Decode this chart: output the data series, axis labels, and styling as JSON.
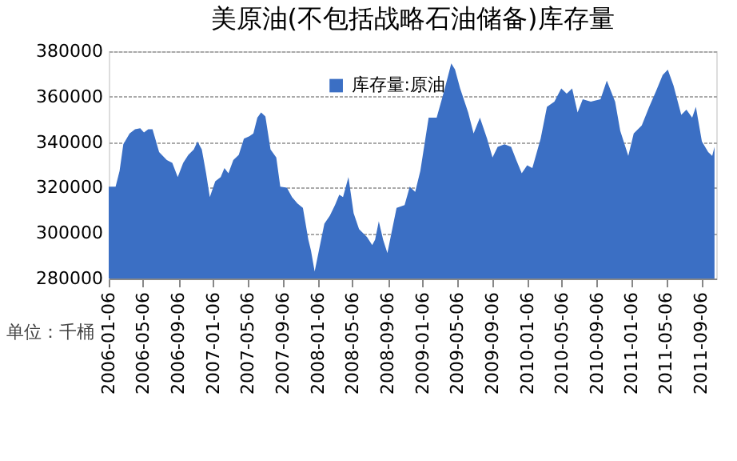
{
  "chart_data": {
    "type": "area",
    "title": "美原油(不包括战略石油储备)库存量",
    "x": [
      "2006-01-06",
      "2006-01-30",
      "2006-02-13",
      "2006-02-26",
      "2006-03-20",
      "2006-04-08",
      "2006-04-26",
      "2006-05-09",
      "2006-05-24",
      "2006-06-08",
      "2006-07-01",
      "2006-07-28",
      "2006-08-16",
      "2006-09-04",
      "2006-09-23",
      "2006-10-11",
      "2006-10-30",
      "2006-11-12",
      "2006-11-27",
      "2006-12-12",
      "2006-12-25",
      "2007-01-13",
      "2007-02-01",
      "2007-02-14",
      "2007-02-28",
      "2007-03-17",
      "2007-04-05",
      "2007-04-23",
      "2007-05-12",
      "2007-05-26",
      "2007-06-09",
      "2007-06-22",
      "2007-07-07",
      "2007-07-25",
      "2007-08-14",
      "2007-08-28",
      "2007-09-20",
      "2007-10-08",
      "2007-10-27",
      "2007-11-15",
      "2007-12-04",
      "2007-12-13",
      "2007-12-26",
      "2008-01-10",
      "2008-01-29",
      "2008-02-17",
      "2008-03-06",
      "2008-03-21",
      "2008-04-03",
      "2008-04-22",
      "2008-05-10",
      "2008-05-29",
      "2008-06-26",
      "2008-07-14",
      "2008-07-24",
      "2008-08-06",
      "2008-08-21",
      "2008-09-05",
      "2008-09-18",
      "2008-10-07",
      "2008-11-04",
      "2008-11-22",
      "2008-12-11",
      "2008-12-29",
      "2009-01-27",
      "2009-02-24",
      "2009-03-22",
      "2009-04-16",
      "2009-04-29",
      "2009-05-17",
      "2009-06-14",
      "2009-07-03",
      "2009-07-25",
      "2009-08-19",
      "2009-09-07",
      "2009-09-25",
      "2009-10-19",
      "2009-11-11",
      "2009-11-29",
      "2009-12-18",
      "2010-01-06",
      "2010-01-24",
      "2010-02-22",
      "2010-03-16",
      "2010-04-11",
      "2010-05-05",
      "2010-05-24",
      "2010-06-12",
      "2010-07-01",
      "2010-07-19",
      "2010-08-16",
      "2010-09-19",
      "2010-10-11",
      "2010-11-09",
      "2010-11-27",
      "2010-12-25",
      "2011-01-13",
      "2011-02-10",
      "2011-03-08",
      "2011-04-01",
      "2011-04-24",
      "2011-05-12",
      "2011-06-01",
      "2011-06-28",
      "2011-07-16",
      "2011-08-05",
      "2011-08-18",
      "2011-09-08",
      "2011-09-30",
      "2011-10-14",
      "2011-10-22"
    ],
    "series": [
      {
        "name": "库存量:原油",
        "color": "#3b6fc4",
        "values": [
          320400,
          320400,
          327400,
          339100,
          343800,
          345700,
          346100,
          344300,
          345700,
          345700,
          335600,
          332100,
          330900,
          324600,
          330900,
          334400,
          336800,
          340300,
          336800,
          326300,
          315800,
          322800,
          324600,
          328600,
          326300,
          332100,
          334400,
          341500,
          342600,
          343800,
          350800,
          353100,
          351300,
          336800,
          333300,
          320400,
          320000,
          315800,
          313000,
          311100,
          297100,
          292400,
          283100,
          292400,
          304100,
          307600,
          312300,
          316900,
          315800,
          324600,
          308800,
          301700,
          298200,
          294700,
          297100,
          305200,
          297100,
          291200,
          299400,
          311100,
          312300,
          320400,
          318100,
          327400,
          350800,
          350800,
          362500,
          374600,
          372000,
          363600,
          353100,
          343800,
          350800,
          341500,
          333300,
          337900,
          339100,
          337900,
          332100,
          326300,
          329800,
          328600,
          341500,
          355500,
          357800,
          363600,
          361300,
          363600,
          353100,
          358900,
          357800,
          358900,
          367100,
          357800,
          345000,
          334000,
          343800,
          347300,
          355500,
          362500,
          369500,
          371900,
          364900,
          352000,
          354300,
          350800,
          355500,
          340300,
          335600,
          334000,
          337900
        ]
      }
    ],
    "xlim": [
      "2006-01-06",
      "2011-10-28"
    ],
    "xticks": [
      "2006-01-06",
      "2006-05-06",
      "2006-09-06",
      "2007-01-06",
      "2007-05-06",
      "2007-09-06",
      "2008-01-06",
      "2008-05-06",
      "2008-09-06",
      "2009-01-06",
      "2009-05-06",
      "2009-09-06",
      "2010-01-06",
      "2010-05-06",
      "2010-09-06",
      "2011-01-06",
      "2011-05-06",
      "2011-09-06"
    ],
    "ylim": [
      280000,
      380000
    ],
    "yticks": [
      280000,
      300000,
      320000,
      340000,
      360000,
      380000
    ],
    "grid": "y",
    "legend": "top",
    "annotations": [
      "单位：千桶"
    ]
  }
}
